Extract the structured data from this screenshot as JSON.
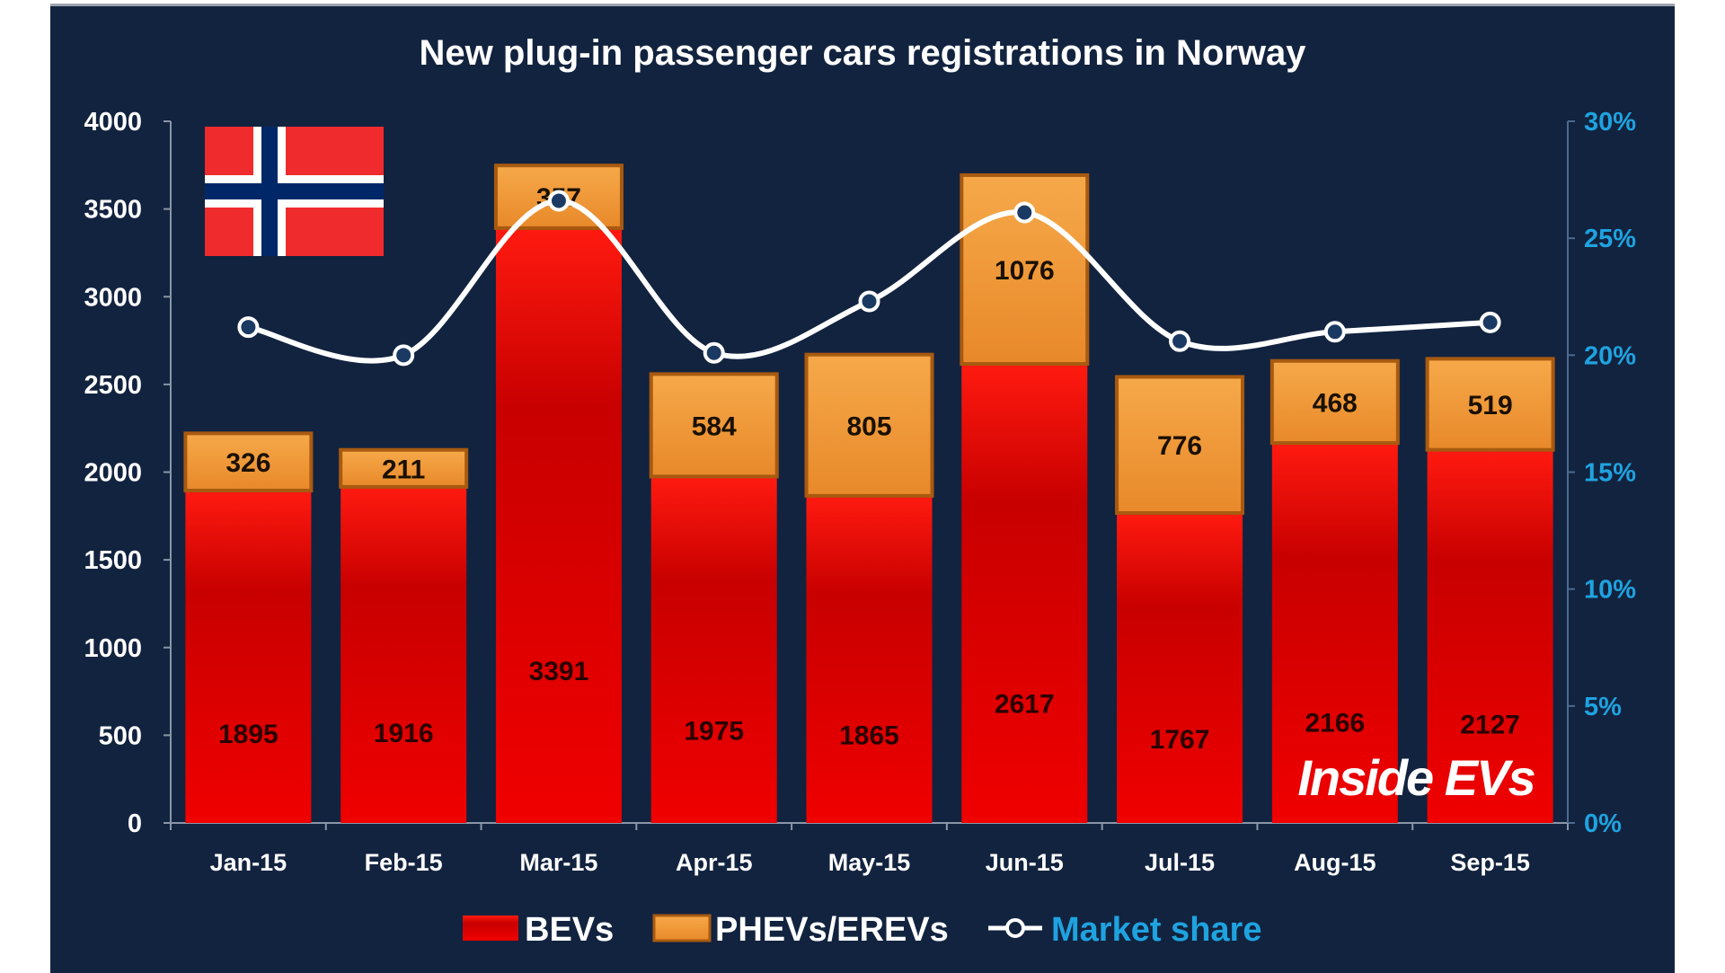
{
  "chart_data": {
    "type": "bar",
    "stacked": true,
    "title": "New plug-in  passenger cars registrations  in Norway",
    "categories": [
      "Jan-15",
      "Feb-15",
      "Mar-15",
      "Apr-15",
      "May-15",
      "Jun-15",
      "Jul-15",
      "Aug-15",
      "Sep-15"
    ],
    "series": [
      {
        "name": "BEVs",
        "type": "bar",
        "axis": "left",
        "color": "#e60000",
        "values": [
          1895,
          1916,
          3391,
          1975,
          1865,
          2617,
          1767,
          2166,
          2127
        ]
      },
      {
        "name": "PHEVs/EREVs",
        "type": "bar",
        "axis": "left",
        "color": "#f29a38",
        "values": [
          326,
          211,
          357,
          584,
          805,
          1076,
          776,
          468,
          519
        ]
      },
      {
        "name": "Market share",
        "type": "line",
        "axis": "right",
        "color": "#ffffff",
        "values": [
          21.2,
          20.0,
          26.6,
          20.1,
          22.3,
          26.1,
          20.6,
          21.0,
          21.4
        ]
      }
    ],
    "ylim": [
      0,
      4000
    ],
    "yticks": [
      "0",
      "500",
      "1000",
      "1500",
      "2000",
      "2500",
      "3000",
      "3500",
      "4000"
    ],
    "y2lim": [
      0,
      30
    ],
    "y2ticks": [
      "0%",
      "5%",
      "10%",
      "15%",
      "20%",
      "25%",
      "30%"
    ],
    "y2_color": "#1fa3e0",
    "legend_position": "bottom",
    "grid": false,
    "background": "#12233f"
  },
  "logo": {
    "text": "Inside EVs"
  },
  "flag": {
    "icon": "norway-flag"
  }
}
